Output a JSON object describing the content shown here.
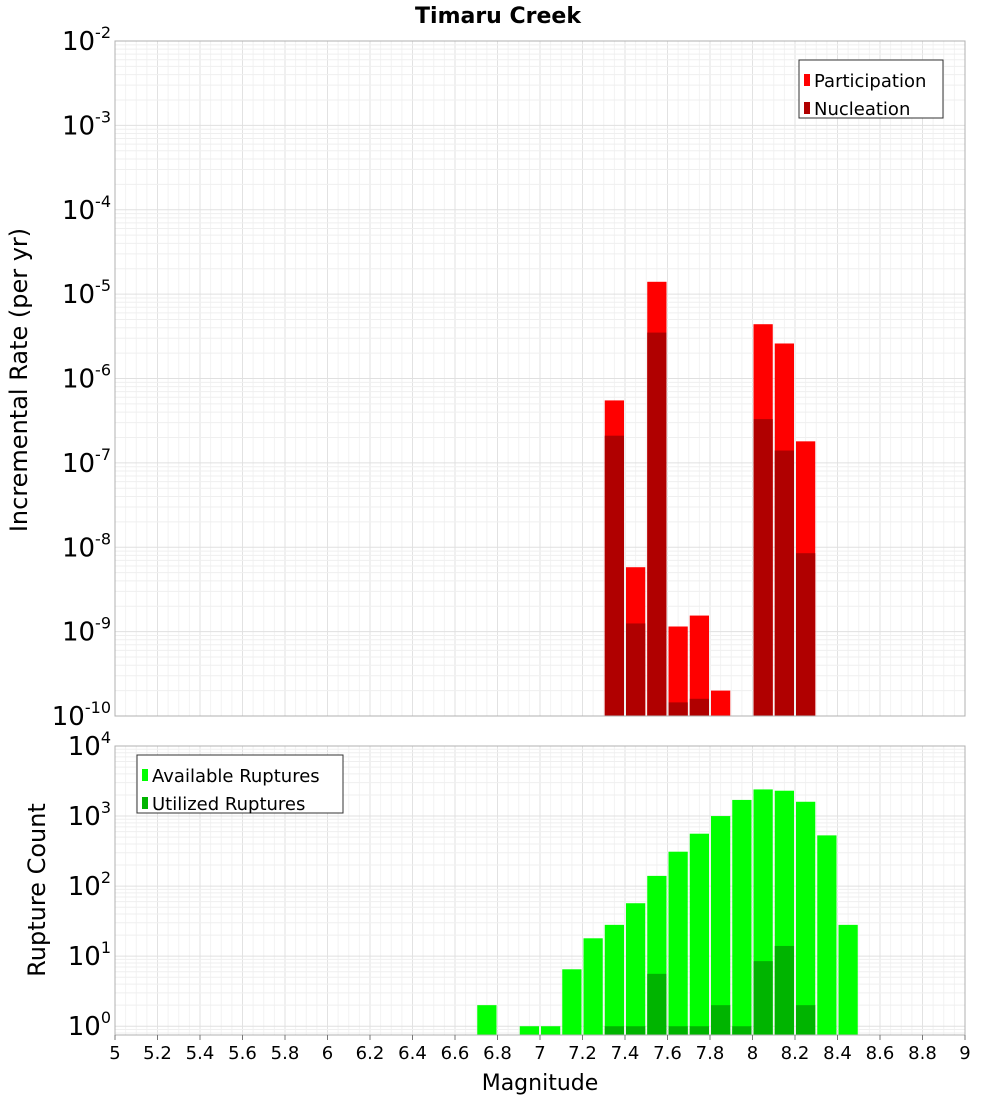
{
  "title": "Timaru Creek",
  "xlabel": "Magnitude",
  "x_ticks": [
    "5",
    "5.2",
    "5.4",
    "5.6",
    "5.8",
    "6",
    "6.2",
    "6.4",
    "6.6",
    "6.8",
    "7",
    "7.2",
    "7.4",
    "7.6",
    "7.8",
    "8",
    "8.2",
    "8.4",
    "8.6",
    "8.8",
    "9"
  ],
  "chart_data": [
    {
      "type": "bar",
      "ylabel": "Incremental Rate (per yr)",
      "y_scale": "log",
      "ylim": [
        1e-10,
        0.01
      ],
      "xlim": [
        5,
        9
      ],
      "y_ticks": [
        {
          "base": "10",
          "exp": "-2"
        },
        {
          "base": "10",
          "exp": "-3"
        },
        {
          "base": "10",
          "exp": "-4"
        },
        {
          "base": "10",
          "exp": "-5"
        },
        {
          "base": "10",
          "exp": "-6"
        },
        {
          "base": "10",
          "exp": "-7"
        },
        {
          "base": "10",
          "exp": "-8"
        },
        {
          "base": "10",
          "exp": "-9"
        },
        {
          "base": "10",
          "exp": "-10"
        }
      ],
      "legend": {
        "position": "top-right",
        "entries": [
          "Participation",
          "Nucleation"
        ]
      },
      "series": [
        {
          "name": "Participation",
          "color": "#ff0000",
          "x": [
            7.35,
            7.45,
            7.55,
            7.65,
            7.75,
            7.85,
            8.05,
            8.15,
            8.25
          ],
          "values": [
            5.5e-07,
            5.8e-09,
            1.4e-05,
            1.15e-09,
            1.55e-09,
            2e-10,
            4.4e-06,
            2.6e-06,
            1.8e-07
          ]
        },
        {
          "name": "Nucleation",
          "color": "#b00000",
          "x": [
            7.35,
            7.45,
            7.55,
            7.65,
            7.75,
            8.05,
            8.15,
            8.25
          ],
          "values": [
            2.1e-07,
            1.25e-09,
            3.5e-06,
            1.45e-10,
            1.6e-10,
            3.3e-07,
            1.4e-07,
            8.5e-09
          ]
        }
      ],
      "grid": true
    },
    {
      "type": "bar",
      "ylabel": "Rupture Count",
      "y_scale": "log",
      "ylim": [
        0.75,
        10000
      ],
      "xlim": [
        5,
        9
      ],
      "y_ticks": [
        {
          "base": "10",
          "exp": "4"
        },
        {
          "base": "10",
          "exp": "3"
        },
        {
          "base": "10",
          "exp": "2"
        },
        {
          "base": "10",
          "exp": "1"
        },
        {
          "base": "10",
          "exp": "0"
        }
      ],
      "legend": {
        "position": "top-left",
        "entries": [
          "Available Ruptures",
          "Utilized Ruptures"
        ]
      },
      "series": [
        {
          "name": "Available Ruptures",
          "color": "#00ff00",
          "x": [
            6.75,
            6.95,
            7.05,
            7.15,
            7.25,
            7.35,
            7.45,
            7.55,
            7.65,
            7.75,
            7.85,
            7.95,
            8.05,
            8.15,
            8.25,
            8.35,
            8.45
          ],
          "values": [
            2,
            1,
            1,
            6.5,
            18,
            28,
            57,
            140,
            310,
            560,
            1000,
            1700,
            2400,
            2300,
            1600,
            530,
            28
          ]
        },
        {
          "name": "Utilized Ruptures",
          "color": "#00b400",
          "x": [
            7.35,
            7.45,
            7.55,
            7.65,
            7.75,
            7.85,
            7.95,
            8.05,
            8.15,
            8.25
          ],
          "values": [
            1,
            1,
            5.6,
            1,
            1,
            2,
            1,
            8.5,
            14,
            2
          ]
        }
      ],
      "grid": true
    }
  ]
}
